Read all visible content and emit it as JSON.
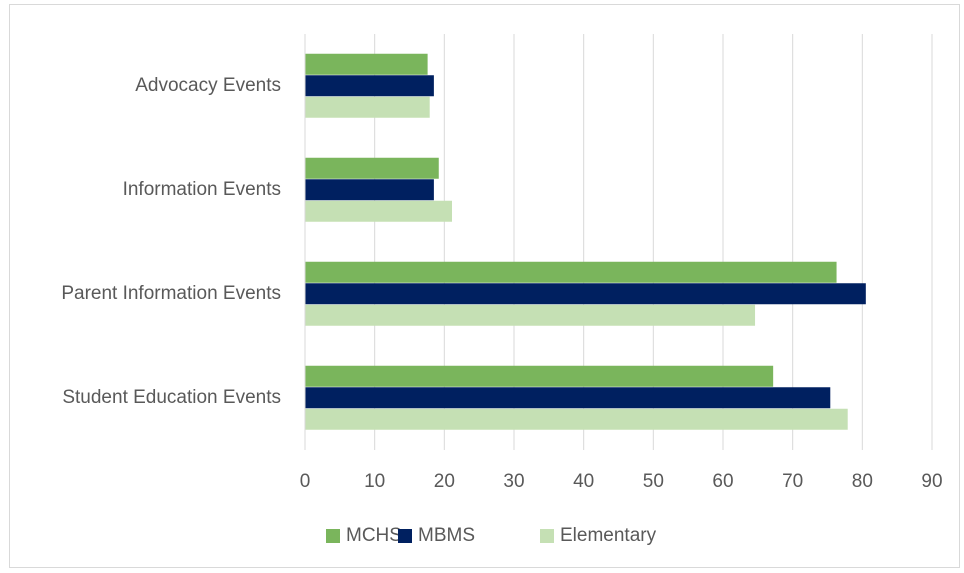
{
  "chart_data": {
    "type": "bar",
    "orientation": "horizontal",
    "categories": [
      "Advocacy Events",
      "Information Events",
      "Parent Information Events",
      "Student Education Events"
    ],
    "series": [
      {
        "name": "MCHS",
        "color": "#7ab55c",
        "values": [
          17.6,
          19.2,
          76.3,
          67.2
        ]
      },
      {
        "name": "MBMS",
        "color": "#002060",
        "values": [
          18.5,
          18.5,
          80.5,
          75.4
        ]
      },
      {
        "name": "Elementary",
        "color": "#c5e0b4",
        "values": [
          17.9,
          21.1,
          64.6,
          77.9
        ]
      }
    ],
    "xlim": [
      0,
      90
    ],
    "xticks": [
      0,
      10,
      20,
      30,
      40,
      50,
      60,
      70,
      80,
      90
    ],
    "grid": true,
    "legend": "bottom"
  }
}
